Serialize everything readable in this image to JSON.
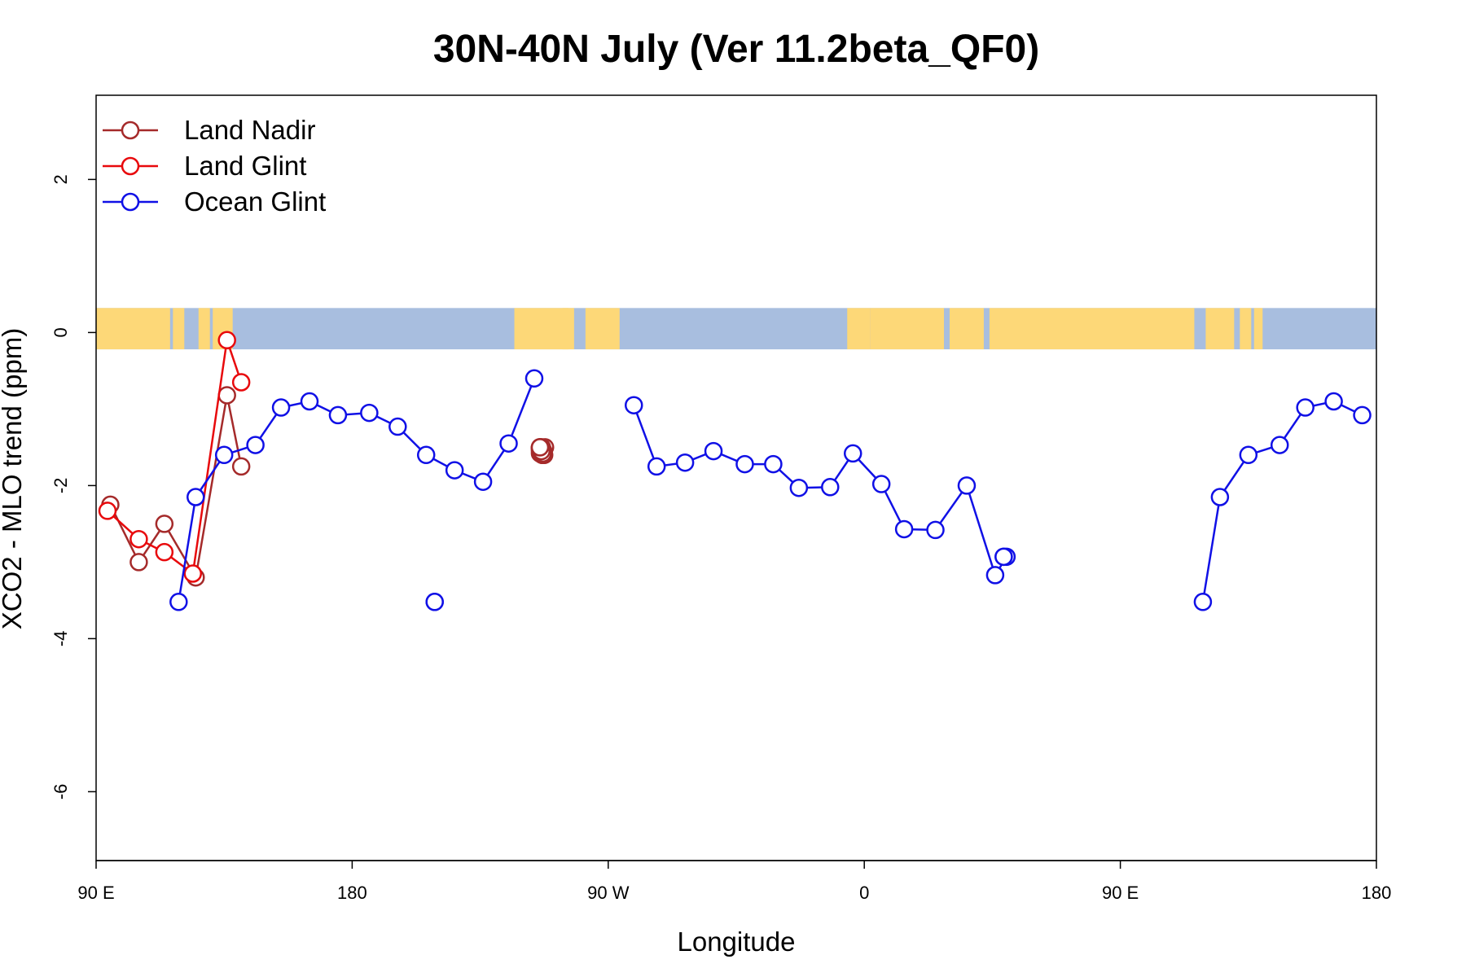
{
  "chart_data": {
    "type": "line",
    "title": "30N-40N July (Ver 11.2beta_QF0)",
    "xlabel": "Longitude",
    "ylabel": "XCO2 - MLO trend (ppm)",
    "xlim": [
      90,
      540
    ],
    "ylim": [
      -6.9,
      3.1
    ],
    "x_ticks": [
      {
        "value": 90,
        "label": "90 E"
      },
      {
        "value": 180,
        "label": "180"
      },
      {
        "value": 270,
        "label": "90 W"
      },
      {
        "value": 360,
        "label": "0"
      },
      {
        "value": 450,
        "label": "90 E"
      },
      {
        "value": 540,
        "label": "180"
      }
    ],
    "y_ticks": [
      {
        "value": 2,
        "label": "2"
      },
      {
        "value": 0,
        "label": "0"
      },
      {
        "value": -2,
        "label": "-2"
      },
      {
        "value": -4,
        "label": "-4"
      },
      {
        "value": -6,
        "label": "-6"
      }
    ],
    "map_band": {
      "y_range": [
        -0.22,
        0.32
      ],
      "land_color": "#fdd878",
      "ocean_color": "#a8bedf"
    },
    "legend": {
      "position": "top-left"
    },
    "series": [
      {
        "name": "Land Nadir",
        "color": "#a52a2a",
        "segments": [
          [
            [
              95,
              -2.25
            ],
            [
              105,
              -3.0
            ],
            [
              114,
              -2.5
            ],
            [
              125,
              -3.2
            ],
            [
              136,
              -0.82
            ],
            [
              141,
              -1.75
            ]
          ],
          [
            [
              246,
              -1.5
            ],
            [
              246.5,
              -1.57
            ],
            [
              247,
              -1.55
            ],
            [
              247.5,
              -1.6
            ],
            [
              247.8,
              -1.5
            ],
            [
              246,
              -1.58
            ],
            [
              246.5,
              -1.55
            ],
            [
              247,
              -1.6
            ],
            [
              246.5,
              -1.57
            ],
            [
              246,
              -1.5
            ],
            [
              246.3,
              -1.55
            ],
            [
              246.8,
              -1.6
            ],
            [
              247.2,
              -1.55
            ],
            [
              246.7,
              -1.5
            ],
            [
              246.2,
              -1.55
            ],
            [
              246,
              -1.52
            ]
          ],
          [
            [
              246,
              -1.52
            ],
            [
              246.5,
              -1.55
            ],
            [
              247,
              -1.58
            ]
          ],
          [
            [
              246,
              -1.55
            ],
            [
              246.5,
              -1.55
            ]
          ],
          [
            [
              246,
              -1.5
            ],
            [
              246,
              -1.5
            ]
          ]
        ]
      },
      {
        "name": "Land Glint",
        "color": "#e8090c",
        "segments": [
          [
            [
              94,
              -2.33
            ],
            [
              105,
              -2.7
            ],
            [
              114,
              -2.87
            ],
            [
              124,
              -3.15
            ],
            [
              136,
              -0.1
            ],
            [
              141,
              -0.65
            ]
          ]
        ]
      },
      {
        "name": "Ocean Glint",
        "color": "#1010e6",
        "segments": [
          [
            [
              119,
              -3.52
            ],
            [
              125,
              -2.15
            ],
            [
              135,
              -1.6
            ],
            [
              146,
              -1.47
            ],
            [
              155,
              -0.98
            ],
            [
              165,
              -0.9
            ],
            [
              175,
              -1.08
            ],
            [
              186,
              -1.05
            ],
            [
              196,
              -1.23
            ],
            [
              206,
              -1.6
            ],
            [
              216,
              -1.8
            ],
            [
              226,
              -1.95
            ],
            [
              235,
              -1.45
            ],
            [
              244,
              -0.6
            ]
          ],
          [
            [
              279,
              -0.95
            ],
            [
              287,
              -1.75
            ],
            [
              297,
              -1.7
            ],
            [
              307,
              -1.55
            ],
            [
              318,
              -1.72
            ],
            [
              328,
              -1.72
            ],
            [
              337,
              -2.03
            ],
            [
              348,
              -2.02
            ],
            [
              356,
              -1.58
            ],
            [
              366,
              -1.98
            ],
            [
              374,
              -2.57
            ],
            [
              385,
              -2.58
            ],
            [
              396,
              -2.0
            ],
            [
              406,
              -3.17
            ],
            [
              410,
              -2.93
            ]
          ],
          [
            [
              409,
              -2.93
            ],
            [
              409,
              -2.93
            ]
          ],
          [
            [
              209,
              -3.52
            ],
            [
              209,
              -3.52
            ]
          ],
          [
            [
              479,
              -3.52
            ],
            [
              485,
              -2.15
            ],
            [
              495,
              -1.6
            ],
            [
              506,
              -1.47
            ],
            [
              515,
              -0.98
            ],
            [
              525,
              -0.9
            ],
            [
              535,
              -1.08
            ]
          ]
        ]
      }
    ]
  }
}
